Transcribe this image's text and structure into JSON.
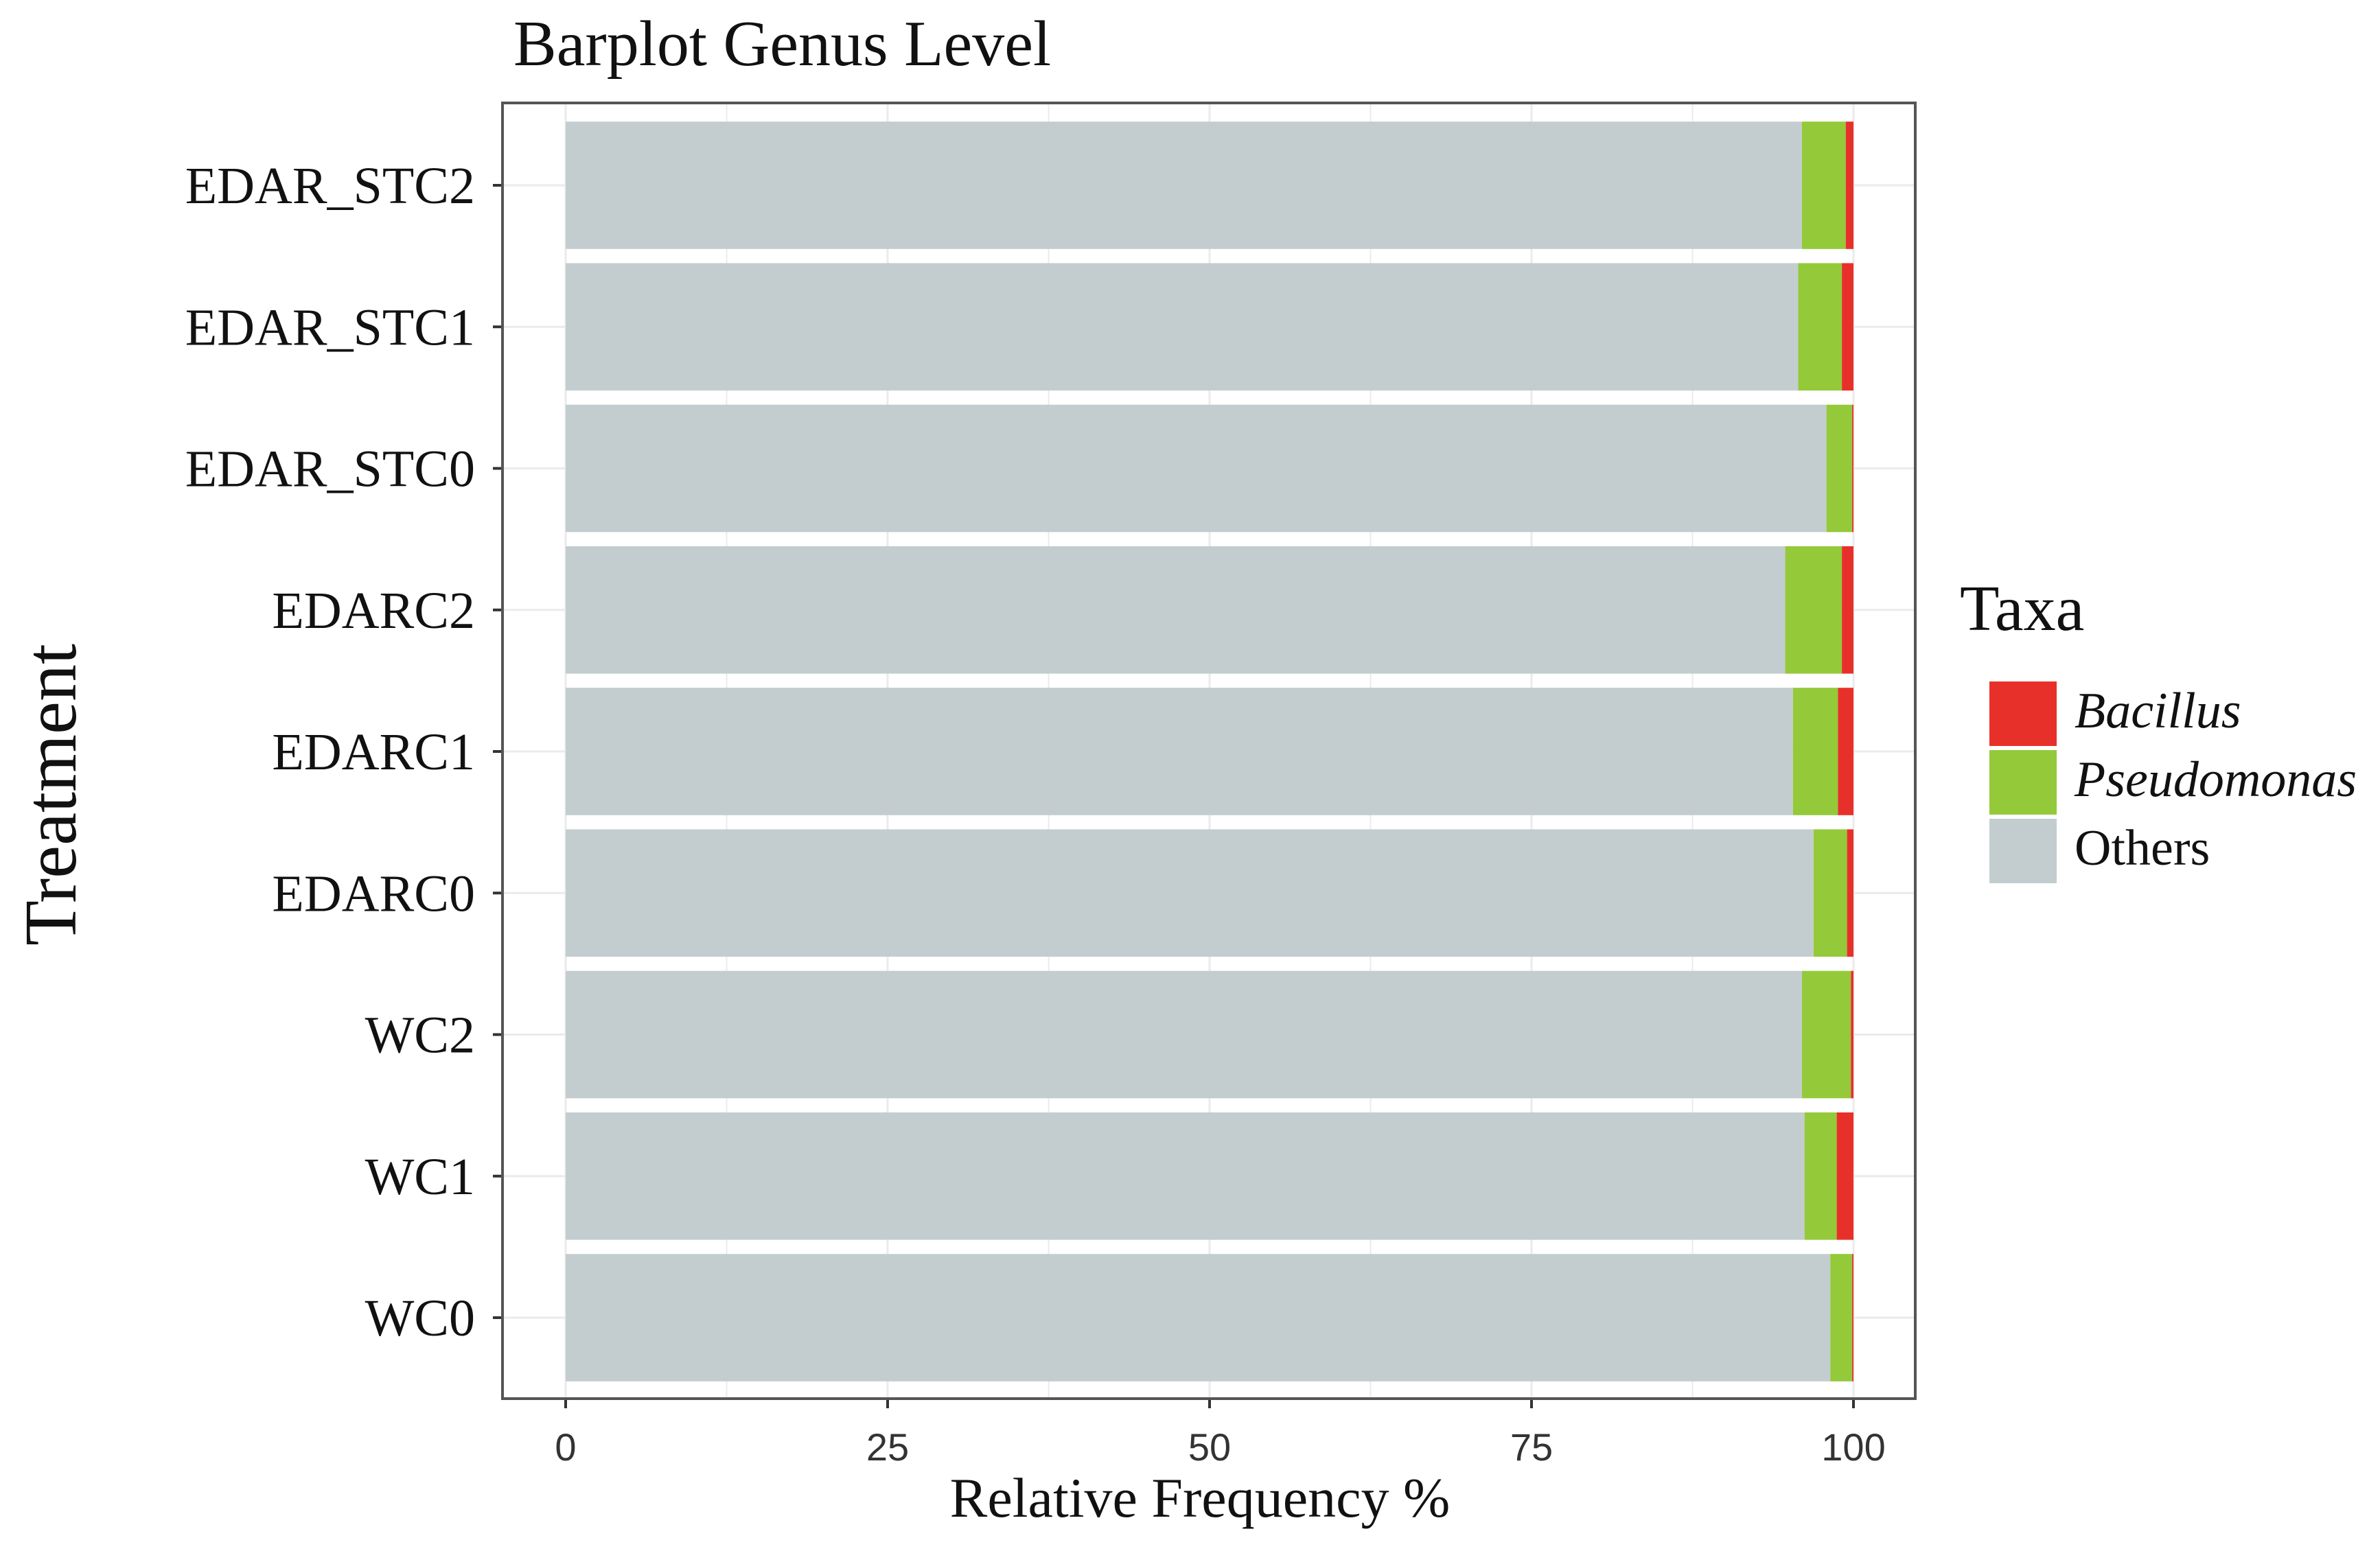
{
  "chart_data": {
    "type": "bar",
    "orientation": "horizontal",
    "stacked": true,
    "title": "Barplot Genus Level",
    "xlabel": "Relative Frequency %",
    "ylabel": "Treatment",
    "xlim": [
      0,
      100
    ],
    "xticks": [
      "0",
      "25",
      "50",
      "75",
      "100"
    ],
    "categories": [
      "WC0",
      "WC1",
      "WC2",
      "EDARC0",
      "EDARC1",
      "EDARC2",
      "EDAR_STC0",
      "EDAR_STC1",
      "EDAR_STC2"
    ],
    "series": [
      {
        "name": "Others",
        "color": "#c3cdcf",
        "values": [
          98.2,
          96.2,
          96.0,
          96.9,
          95.3,
          94.7,
          97.9,
          95.7,
          96.0
        ]
      },
      {
        "name": "Pseudomonas",
        "color": "#94c93a",
        "values": [
          1.7,
          2.5,
          3.8,
          2.6,
          3.5,
          4.4,
          2.0,
          3.4,
          3.4
        ]
      },
      {
        "name": "Bacillus",
        "color": "#e8302a",
        "values": [
          0.1,
          1.3,
          0.2,
          0.5,
          1.2,
          0.9,
          0.1,
          0.9,
          0.6
        ]
      }
    ],
    "legend": {
      "title": "Taxa",
      "position": "right",
      "entries": [
        {
          "name": "Bacillus",
          "color": "#e8302a",
          "italic": true
        },
        {
          "name": "Pseudomonas",
          "color": "#94c93a",
          "italic": true
        },
        {
          "name": "Others",
          "color": "#c3cdcf",
          "italic": false
        }
      ]
    },
    "grid": true,
    "panel_border_color": "#555555",
    "grid_color": "#ebebeb"
  }
}
